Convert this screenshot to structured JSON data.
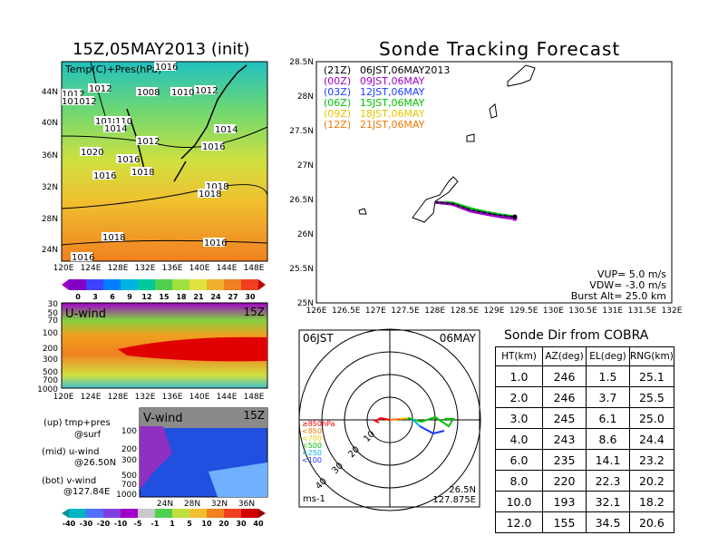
{
  "left": {
    "title": "15Z,05MAY2013 (init)",
    "map_label": "Temp(C)+Pres(hPa)",
    "map_lat_labels": [
      "44N",
      "40N",
      "36N",
      "32N",
      "28N",
      "24N"
    ],
    "map_lon_labels": [
      "120E",
      "124E",
      "128E",
      "132E",
      "136E",
      "140E",
      "144E",
      "148E"
    ],
    "pressure_labels": [
      "1016",
      "1012",
      "1012",
      "1008",
      "1010",
      "1012",
      "1010",
      "1012",
      "1018",
      "110",
      "1014",
      "1014",
      "1012",
      "1016",
      "1020",
      "1016",
      "1018",
      "1016",
      "1018",
      "1018",
      "1018",
      "1016",
      "1016"
    ],
    "temp_colorbar_labels": [
      "0",
      "3",
      "6",
      "9",
      "12",
      "15",
      "18",
      "21",
      "24",
      "27",
      "30"
    ],
    "uwind_title": "U-wind",
    "uwind_time": "15Z",
    "uwind_levels": [
      "30",
      "50",
      "70",
      "100",
      "200",
      "300",
      "500",
      "700",
      "1000"
    ],
    "uwind_lon_labels": [
      "120E",
      "124E",
      "128E",
      "132E",
      "136E",
      "140E",
      "144E",
      "148E"
    ],
    "vwind_title": "V-wind",
    "vwind_time": "15Z",
    "vwind_levels": [
      "100",
      "200",
      "300",
      "500",
      "700",
      "1000"
    ],
    "vwind_lat_labels": [
      "24N",
      "28N",
      "32N",
      "36N"
    ],
    "wind_colorbar_labels": [
      "-40",
      "-30",
      "-20",
      "-10",
      "-5",
      "-1",
      "1",
      "5",
      "10",
      "20",
      "30",
      "40"
    ],
    "legend_lines": [
      "(up) tmp+pres",
      "@surf",
      "(mid) u-wind",
      "@26.50N",
      "(bot) v-wind",
      "@127.84E"
    ]
  },
  "track": {
    "title": "Sonde Tracking Forecast",
    "lat_labels": [
      "28.5N",
      "28N",
      "27.5N",
      "27N",
      "26.5N",
      "26N",
      "25.5N",
      "25N"
    ],
    "lon_labels": [
      "126E",
      "126.5E",
      "127E",
      "127.5E",
      "128E",
      "128.5E",
      "129E",
      "129.5E",
      "130E",
      "130.5E",
      "131E",
      "131.5E",
      "132E"
    ],
    "launches": [
      {
        "code": "(21Z)",
        "time": "06JST,06MAY2013",
        "color": "#000000"
      },
      {
        "code": "(00Z)",
        "time": "09JST,06MAY",
        "color": "#a000c8"
      },
      {
        "code": "(03Z)",
        "time": "12JST,06MAY",
        "color": "#1e3cff"
      },
      {
        "code": "(06Z)",
        "time": "15JST,06MAY",
        "color": "#00c000"
      },
      {
        "code": "(09Z)",
        "time": "18JST,06MAY",
        "color": "#e6c800"
      },
      {
        "code": "(12Z)",
        "time": "21JST,06MAY",
        "color": "#f07800"
      }
    ],
    "vup": "VUP=  5.0 m/s",
    "vdw": "VDW= -3.0 m/s",
    "burst": "Burst Alt= 25.0 km"
  },
  "polar": {
    "time_left": "06JST",
    "date_right": "06MAY",
    "levels": [
      "≥850hPa",
      "<850",
      "<700",
      "<500",
      "<250",
      "<100"
    ],
    "level_colors": [
      "#ff0000",
      "#f07800",
      "#e6c800",
      "#00c000",
      "#00b4f0",
      "#1e3cff"
    ],
    "ring_labels": [
      "10",
      "20",
      "30",
      "40"
    ],
    "unit": "ms-1",
    "lat": "26.5N",
    "lon": "127.875E"
  },
  "sonde_dir": {
    "title": "Sonde Dir from COBRA",
    "columns": [
      "HT(km)",
      "AZ(deg)",
      "EL(deg)",
      "RNG(km)"
    ],
    "rows": [
      [
        "1.0",
        "246",
        "1.5",
        "25.1"
      ],
      [
        "2.0",
        "246",
        "3.7",
        "25.5"
      ],
      [
        "3.0",
        "245",
        "6.1",
        "25.0"
      ],
      [
        "4.0",
        "243",
        "8.6",
        "24.4"
      ],
      [
        "6.0",
        "235",
        "14.1",
        "23.2"
      ],
      [
        "8.0",
        "220",
        "22.3",
        "20.2"
      ],
      [
        "10.0",
        "193",
        "32.1",
        "18.2"
      ],
      [
        "12.0",
        "155",
        "34.5",
        "20.6"
      ]
    ]
  },
  "chart_data": [
    {
      "type": "line",
      "title": "Sonde Tracking Forecast",
      "xlabel": "",
      "ylabel": "",
      "xlim": [
        126,
        132
      ],
      "ylim": [
        25,
        28.5
      ],
      "series": [
        {
          "name": "(21Z) 06JST,06MAY2013",
          "x": [
            128.0,
            128.3,
            128.6,
            128.9,
            129.1,
            129.35
          ],
          "y": [
            26.46,
            26.44,
            26.35,
            26.3,
            26.27,
            26.25
          ]
        },
        {
          "name": "(00Z) 09JST,06MAY",
          "x": [
            128.0,
            128.3,
            128.6,
            128.9,
            129.1,
            129.35
          ],
          "y": [
            26.46,
            26.43,
            26.33,
            26.28,
            26.25,
            26.22
          ]
        },
        {
          "name": "(03Z) 12JST,06MAY",
          "x": [
            128.0,
            128.3,
            128.6,
            128.9,
            129.1,
            129.35
          ],
          "y": [
            26.46,
            26.43,
            26.34,
            26.29,
            26.26,
            26.23
          ]
        },
        {
          "name": "(06Z) 15JST,06MAY",
          "x": [
            128.0,
            128.3,
            128.6,
            128.9,
            129.1,
            129.35
          ],
          "y": [
            26.46,
            26.45,
            26.37,
            26.31,
            26.28,
            26.25
          ]
        }
      ]
    },
    {
      "type": "table",
      "title": "Sonde Dir from COBRA",
      "columns": [
        "HT(km)",
        "AZ(deg)",
        "EL(deg)",
        "RNG(km)"
      ],
      "rows": [
        [
          1.0,
          246,
          1.5,
          25.1
        ],
        [
          2.0,
          246,
          3.7,
          25.5
        ],
        [
          3.0,
          245,
          6.1,
          25.0
        ],
        [
          4.0,
          243,
          8.6,
          24.4
        ],
        [
          6.0,
          235,
          14.1,
          23.2
        ],
        [
          8.0,
          220,
          22.3,
          20.2
        ],
        [
          10.0,
          193,
          32.1,
          18.2
        ],
        [
          12.0,
          155,
          34.5,
          20.6
        ]
      ]
    }
  ]
}
